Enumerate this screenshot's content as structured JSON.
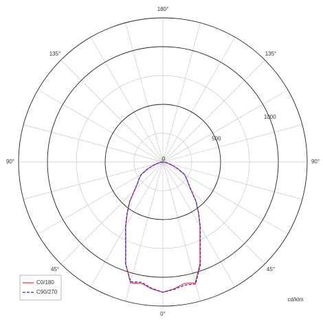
{
  "chart_data": {
    "type": "polar",
    "x": [
      -90,
      -85,
      -80,
      -75,
      -70,
      -65,
      -60,
      -55,
      -50,
      -45,
      -40,
      -35,
      -30,
      -25,
      -20,
      -15,
      -10,
      -5,
      0,
      5,
      10,
      15,
      20,
      25,
      30,
      35,
      40,
      45,
      50,
      55,
      60,
      65,
      70,
      75,
      80,
      85,
      90
    ],
    "series": [
      {
        "name": "C0/180",
        "color": "#e8313a",
        "dashed": false,
        "values": [
          0,
          12,
          24,
          48,
          90,
          150,
          214,
          250,
          285,
          345,
          445,
          537,
          643,
          760,
          940,
          1085,
          1070,
          1105,
          1130,
          1105,
          1070,
          1085,
          940,
          760,
          643,
          537,
          445,
          345,
          285,
          250,
          214,
          150,
          90,
          48,
          24,
          12,
          0
        ]
      },
      {
        "name": "C90/270",
        "color": "#2b2bd0",
        "dashed": true,
        "values": [
          0,
          12,
          24,
          48,
          92,
          152,
          216,
          252,
          288,
          348,
          448,
          540,
          648,
          765,
          945,
          1075,
          1060,
          1100,
          1130,
          1110,
          1085,
          1095,
          950,
          768,
          648,
          540,
          448,
          348,
          288,
          252,
          216,
          152,
          92,
          48,
          24,
          12,
          0
        ]
      }
    ],
    "rlim": [
      0,
      1250
    ],
    "rticks": [
      0,
      500,
      1000
    ],
    "minor_rticks": [
      250,
      750
    ],
    "spoke_step": 15,
    "angle_ticks": [
      {
        "value": 0,
        "label": "0°"
      },
      {
        "value": 45,
        "label": "45°"
      },
      {
        "value": -45,
        "label": "45°"
      },
      {
        "value": 90,
        "label": "90°"
      },
      {
        "value": -90,
        "label": "90°"
      },
      {
        "value": 135,
        "label": "135°"
      },
      {
        "value": -135,
        "label": "135°"
      },
      {
        "value": 180,
        "label": "180°"
      }
    ],
    "unit_label": "cd/klm",
    "legend": "lower left"
  }
}
